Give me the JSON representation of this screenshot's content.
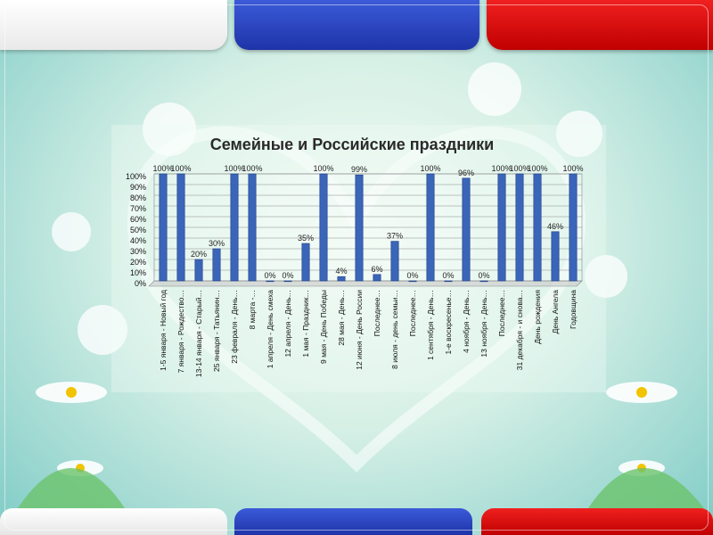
{
  "slide": {
    "colors": {
      "white": "#ffffff",
      "blue": "#2741c0",
      "red": "#e00000"
    }
  },
  "chart_data": {
    "type": "bar",
    "title": "Семейные и Российские праздники",
    "xlabel": "",
    "ylabel": "",
    "ylim": [
      0,
      100
    ],
    "yticks": [
      "0%",
      "10%",
      "20%",
      "30%",
      "40%",
      "50%",
      "60%",
      "70%",
      "80%",
      "90%",
      "100%"
    ],
    "grid": true,
    "legend": "none",
    "bar_color": "#3a65b8",
    "categories": [
      "1-5 января - Новый год",
      "7 января - Рождество…",
      "13-14 января - Старый…",
      "25 января - Татьянин…",
      "23 февраля - День…",
      "8 марта -…",
      "1 апреля - День смеха",
      "12 апреля - День…",
      "1 мая - Праздник…",
      "9 мая - День Победы",
      "28 мая - День…",
      "12 июня - День России",
      "Последнее…",
      "8 июля - день семьи…",
      "Последнее…",
      "1 сентября - День…",
      "1-е воскресенье…",
      "4 ноября - День…",
      "13 ноября - День…",
      "Последнее…",
      "31 декабря - и снова…",
      "День рождения",
      "День Ангела",
      "Годовщина"
    ],
    "values": [
      100,
      100,
      20,
      30,
      100,
      100,
      0,
      0,
      35,
      100,
      4,
      99,
      6,
      37,
      0,
      100,
      0,
      96,
      0,
      100,
      100,
      100,
      46,
      100
    ],
    "data_labels": [
      "100%",
      "100%",
      "20%",
      "30%",
      "100%",
      "100%",
      "0%",
      "0%",
      "35%",
      "100%",
      "4%",
      "99%",
      "6%",
      "37%",
      "0%",
      "100%",
      "0%",
      "96%",
      "0%",
      "100%",
      "100%",
      "100%",
      "46%",
      "100%"
    ]
  }
}
